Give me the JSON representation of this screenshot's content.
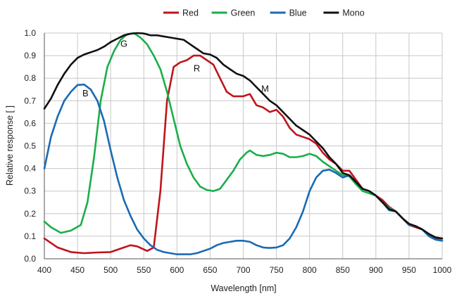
{
  "chart_data": {
    "type": "line",
    "title": "",
    "xlabel": "Wavelength [nm]",
    "ylabel": "Relative response [ ]",
    "xlim": [
      400,
      1000
    ],
    "ylim": [
      0.0,
      1.0
    ],
    "x_ticks": [
      400,
      450,
      500,
      550,
      600,
      650,
      700,
      750,
      800,
      850,
      900,
      950,
      1000
    ],
    "y_ticks": [
      "0.0",
      "0.1",
      "0.2",
      "0.3",
      "0.4",
      "0.5",
      "0.6",
      "0.7",
      "0.8",
      "0.9",
      "1.0"
    ],
    "grid": true,
    "legend_position": "top-center",
    "series": [
      {
        "name": "Red",
        "color": "#c0141c",
        "points": [
          [
            400,
            0.09
          ],
          [
            420,
            0.05
          ],
          [
            440,
            0.03
          ],
          [
            460,
            0.025
          ],
          [
            480,
            0.028
          ],
          [
            500,
            0.03
          ],
          [
            520,
            0.05
          ],
          [
            530,
            0.06
          ],
          [
            540,
            0.055
          ],
          [
            555,
            0.035
          ],
          [
            565,
            0.05
          ],
          [
            575,
            0.3
          ],
          [
            585,
            0.7
          ],
          [
            595,
            0.85
          ],
          [
            605,
            0.87
          ],
          [
            615,
            0.88
          ],
          [
            625,
            0.9
          ],
          [
            635,
            0.9
          ],
          [
            645,
            0.88
          ],
          [
            655,
            0.86
          ],
          [
            665,
            0.8
          ],
          [
            675,
            0.74
          ],
          [
            685,
            0.72
          ],
          [
            700,
            0.72
          ],
          [
            710,
            0.73
          ],
          [
            720,
            0.68
          ],
          [
            730,
            0.67
          ],
          [
            740,
            0.65
          ],
          [
            750,
            0.66
          ],
          [
            760,
            0.63
          ],
          [
            770,
            0.58
          ],
          [
            780,
            0.55
          ],
          [
            790,
            0.54
          ],
          [
            800,
            0.53
          ],
          [
            810,
            0.51
          ],
          [
            820,
            0.47
          ],
          [
            830,
            0.44
          ],
          [
            840,
            0.42
          ],
          [
            850,
            0.39
          ],
          [
            860,
            0.39
          ],
          [
            870,
            0.35
          ],
          [
            880,
            0.31
          ],
          [
            890,
            0.3
          ],
          [
            900,
            0.28
          ],
          [
            910,
            0.26
          ],
          [
            920,
            0.23
          ],
          [
            930,
            0.21
          ],
          [
            940,
            0.18
          ],
          [
            950,
            0.15
          ],
          [
            960,
            0.14
          ],
          [
            970,
            0.13
          ],
          [
            980,
            0.11
          ],
          [
            990,
            0.09
          ],
          [
            1000,
            0.09
          ]
        ]
      },
      {
        "name": "Green",
        "color": "#1aae4a",
        "points": [
          [
            400,
            0.165
          ],
          [
            410,
            0.14
          ],
          [
            425,
            0.115
          ],
          [
            440,
            0.125
          ],
          [
            455,
            0.15
          ],
          [
            465,
            0.25
          ],
          [
            475,
            0.45
          ],
          [
            485,
            0.7
          ],
          [
            495,
            0.85
          ],
          [
            505,
            0.92
          ],
          [
            515,
            0.97
          ],
          [
            525,
            0.995
          ],
          [
            535,
            1.0
          ],
          [
            545,
            0.98
          ],
          [
            555,
            0.95
          ],
          [
            565,
            0.9
          ],
          [
            575,
            0.84
          ],
          [
            585,
            0.74
          ],
          [
            595,
            0.62
          ],
          [
            605,
            0.5
          ],
          [
            615,
            0.42
          ],
          [
            625,
            0.36
          ],
          [
            635,
            0.32
          ],
          [
            645,
            0.305
          ],
          [
            655,
            0.3
          ],
          [
            665,
            0.31
          ],
          [
            675,
            0.35
          ],
          [
            685,
            0.39
          ],
          [
            695,
            0.44
          ],
          [
            705,
            0.47
          ],
          [
            710,
            0.48
          ],
          [
            720,
            0.46
          ],
          [
            730,
            0.455
          ],
          [
            740,
            0.46
          ],
          [
            750,
            0.47
          ],
          [
            760,
            0.465
          ],
          [
            770,
            0.45
          ],
          [
            780,
            0.45
          ],
          [
            790,
            0.455
          ],
          [
            800,
            0.465
          ],
          [
            810,
            0.455
          ],
          [
            820,
            0.43
          ],
          [
            830,
            0.41
          ],
          [
            840,
            0.39
          ],
          [
            850,
            0.37
          ],
          [
            860,
            0.365
          ],
          [
            870,
            0.33
          ],
          [
            880,
            0.3
          ],
          [
            890,
            0.29
          ],
          [
            900,
            0.28
          ],
          [
            910,
            0.25
          ],
          [
            920,
            0.225
          ],
          [
            930,
            0.21
          ],
          [
            940,
            0.18
          ],
          [
            950,
            0.15
          ],
          [
            960,
            0.145
          ],
          [
            970,
            0.13
          ],
          [
            980,
            0.1
          ],
          [
            990,
            0.085
          ],
          [
            1000,
            0.08
          ]
        ]
      },
      {
        "name": "Blue",
        "color": "#1a6ab4",
        "points": [
          [
            400,
            0.4
          ],
          [
            410,
            0.54
          ],
          [
            420,
            0.63
          ],
          [
            430,
            0.7
          ],
          [
            440,
            0.74
          ],
          [
            450,
            0.77
          ],
          [
            460,
            0.772
          ],
          [
            470,
            0.75
          ],
          [
            480,
            0.7
          ],
          [
            490,
            0.61
          ],
          [
            500,
            0.48
          ],
          [
            510,
            0.36
          ],
          [
            520,
            0.26
          ],
          [
            530,
            0.19
          ],
          [
            540,
            0.13
          ],
          [
            550,
            0.09
          ],
          [
            560,
            0.06
          ],
          [
            570,
            0.04
          ],
          [
            580,
            0.03
          ],
          [
            590,
            0.025
          ],
          [
            600,
            0.02
          ],
          [
            610,
            0.02
          ],
          [
            620,
            0.02
          ],
          [
            630,
            0.025
          ],
          [
            640,
            0.035
          ],
          [
            650,
            0.045
          ],
          [
            660,
            0.06
          ],
          [
            670,
            0.07
          ],
          [
            680,
            0.075
          ],
          [
            690,
            0.08
          ],
          [
            700,
            0.08
          ],
          [
            710,
            0.075
          ],
          [
            720,
            0.06
          ],
          [
            730,
            0.05
          ],
          [
            740,
            0.048
          ],
          [
            750,
            0.05
          ],
          [
            760,
            0.06
          ],
          [
            770,
            0.09
          ],
          [
            780,
            0.14
          ],
          [
            790,
            0.21
          ],
          [
            800,
            0.3
          ],
          [
            810,
            0.36
          ],
          [
            820,
            0.39
          ],
          [
            830,
            0.395
          ],
          [
            840,
            0.38
          ],
          [
            850,
            0.36
          ],
          [
            860,
            0.37
          ],
          [
            870,
            0.34
          ],
          [
            880,
            0.31
          ],
          [
            890,
            0.3
          ],
          [
            900,
            0.28
          ],
          [
            910,
            0.25
          ],
          [
            920,
            0.215
          ],
          [
            930,
            0.21
          ],
          [
            940,
            0.18
          ],
          [
            950,
            0.15
          ],
          [
            960,
            0.145
          ],
          [
            970,
            0.13
          ],
          [
            980,
            0.1
          ],
          [
            990,
            0.085
          ],
          [
            1000,
            0.08
          ]
        ]
      },
      {
        "name": "Mono",
        "color": "#111111",
        "points": [
          [
            400,
            0.665
          ],
          [
            410,
            0.71
          ],
          [
            420,
            0.77
          ],
          [
            430,
            0.82
          ],
          [
            440,
            0.86
          ],
          [
            450,
            0.89
          ],
          [
            460,
            0.905
          ],
          [
            470,
            0.915
          ],
          [
            480,
            0.925
          ],
          [
            490,
            0.94
          ],
          [
            500,
            0.96
          ],
          [
            510,
            0.975
          ],
          [
            520,
            0.99
          ],
          [
            530,
            0.997
          ],
          [
            540,
            1.0
          ],
          [
            550,
            0.998
          ],
          [
            560,
            0.99
          ],
          [
            570,
            0.99
          ],
          [
            580,
            0.985
          ],
          [
            590,
            0.98
          ],
          [
            600,
            0.975
          ],
          [
            610,
            0.97
          ],
          [
            620,
            0.95
          ],
          [
            630,
            0.93
          ],
          [
            640,
            0.91
          ],
          [
            650,
            0.905
          ],
          [
            660,
            0.89
          ],
          [
            670,
            0.86
          ],
          [
            680,
            0.84
          ],
          [
            690,
            0.82
          ],
          [
            700,
            0.81
          ],
          [
            710,
            0.79
          ],
          [
            720,
            0.76
          ],
          [
            730,
            0.73
          ],
          [
            740,
            0.7
          ],
          [
            750,
            0.68
          ],
          [
            760,
            0.65
          ],
          [
            770,
            0.62
          ],
          [
            780,
            0.59
          ],
          [
            790,
            0.57
          ],
          [
            800,
            0.55
          ],
          [
            810,
            0.52
          ],
          [
            820,
            0.49
          ],
          [
            830,
            0.45
          ],
          [
            840,
            0.42
          ],
          [
            850,
            0.38
          ],
          [
            860,
            0.37
          ],
          [
            870,
            0.34
          ],
          [
            880,
            0.31
          ],
          [
            890,
            0.3
          ],
          [
            900,
            0.28
          ],
          [
            910,
            0.25
          ],
          [
            920,
            0.22
          ],
          [
            930,
            0.21
          ],
          [
            940,
            0.18
          ],
          [
            950,
            0.155
          ],
          [
            960,
            0.145
          ],
          [
            970,
            0.13
          ],
          [
            980,
            0.11
          ],
          [
            990,
            0.095
          ],
          [
            1000,
            0.09
          ]
        ]
      }
    ],
    "annotations": [
      {
        "text": "B",
        "x": 462,
        "y": 0.72
      },
      {
        "text": "G",
        "x": 520,
        "y": 0.94
      },
      {
        "text": "R",
        "x": 630,
        "y": 0.83
      },
      {
        "text": "M",
        "x": 733,
        "y": 0.74
      }
    ]
  }
}
